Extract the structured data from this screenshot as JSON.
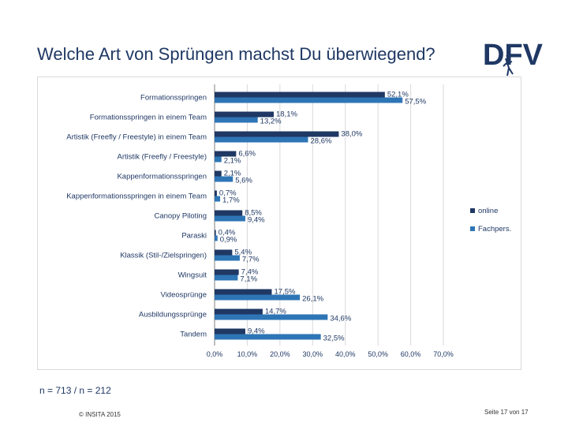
{
  "slide": {
    "title": "Welche Art von Sprüngen machst Du überwiegend?",
    "footnote": "n = 713 / n = 212",
    "copyright": "© INSITA 2015",
    "page": "Seite 17 von 17"
  },
  "logo": {
    "text": "DFV",
    "colors": {
      "primary": "#1f3864",
      "accent": "#7f7f7f"
    }
  },
  "chart_data": {
    "type": "bar",
    "orientation": "horizontal",
    "categories": [
      "Formationsspringen",
      "Formationsspringen in einem Team",
      "Artistik (Freefly / Freestyle) in einem Team",
      "Artistik (Freefly / Freestyle)",
      "Kappenformationsspringen",
      "Kappenformationsspringen in einem Team",
      "Canopy Piloting",
      "Paraski",
      "Klassik (Stil-/Zielspringen)",
      "Wingsuit",
      "Videosprünge",
      "Ausbildungssprünge",
      "Tandem"
    ],
    "series": [
      {
        "name": "online",
        "color": "#1f3864",
        "values": [
          52.1,
          18.1,
          38.0,
          6.6,
          2.1,
          0.7,
          8.5,
          0.4,
          5.4,
          7.4,
          17.5,
          14.7,
          9.4
        ],
        "labels": [
          "52,1%",
          "18,1%",
          "38,0%",
          "6,6%",
          "2,1%",
          "0,7%",
          "8,5%",
          "0,4%",
          "5,4%",
          "7,4%",
          "17,5%",
          "14,7%",
          "9,4%"
        ]
      },
      {
        "name": "Fachpers.",
        "color": "#2e75b6",
        "values": [
          57.5,
          13.2,
          28.6,
          2.1,
          5.6,
          1.7,
          9.4,
          0.9,
          7.7,
          7.1,
          26.1,
          34.6,
          32.5
        ],
        "labels": [
          "57,5%",
          "13,2%",
          "28,6%",
          "2,1%",
          "5,6%",
          "1,7%",
          "9,4%",
          "0,9%",
          "7,7%",
          "7,1%",
          "26,1%",
          "34,6%",
          "32,5%"
        ]
      }
    ],
    "xlim": [
      0,
      70
    ],
    "xticks": [
      "0,0%",
      "10,0%",
      "20,0%",
      "30,0%",
      "40,0%",
      "50,0%",
      "60,0%",
      "70,0%"
    ],
    "grid": true,
    "legend": "right"
  }
}
